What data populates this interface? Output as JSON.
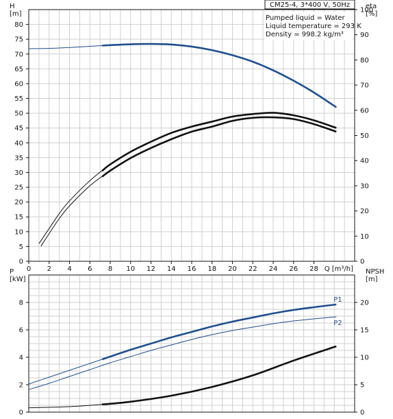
{
  "chart_data": [
    {
      "type": "line",
      "title": "CM25-4, 3*400 V, 50Hz",
      "info": [
        "Pumped liquid = Water",
        "Liquid temperature = 293 K",
        "Density = 998.2 kg/m³"
      ],
      "xlabel": "Q [m³/h]",
      "xlim": [
        0,
        32
      ],
      "xticks": [
        0,
        2,
        4,
        6,
        8,
        10,
        12,
        14,
        16,
        18,
        20,
        22,
        24,
        26,
        28
      ],
      "ylabel_left": [
        "H",
        "[m]"
      ],
      "ylim_left": [
        0,
        85
      ],
      "yticks_left": [
        0,
        5,
        10,
        15,
        20,
        25,
        30,
        35,
        40,
        45,
        50,
        55,
        60,
        65,
        70,
        75,
        80
      ],
      "ylabel_right": [
        "eta",
        "[%]"
      ],
      "ylim_right": [
        0,
        100
      ],
      "yticks_right": [
        0,
        10,
        20,
        30,
        40,
        50,
        60,
        70,
        80,
        90,
        100
      ],
      "grid": true,
      "series": [
        {
          "axis": "left",
          "color": "#1f4e8c",
          "x": [
            0,
            2,
            4,
            6,
            8,
            10,
            12,
            14,
            16,
            18,
            20,
            22,
            24,
            26,
            28,
            30.2
          ],
          "values": [
            71.8,
            71.9,
            72.2,
            72.6,
            73.0,
            73.3,
            73.4,
            73.2,
            72.5,
            71.3,
            69.6,
            67.4,
            64.5,
            61.0,
            57.0,
            52.0
          ],
          "highlight_from": 7.2
        },
        {
          "axis": "right",
          "color": "#111111",
          "x": [
            1.2,
            2,
            3,
            4,
            6,
            8,
            10,
            12,
            14,
            16,
            18,
            20,
            22,
            24,
            26,
            28,
            30.2
          ],
          "values": [
            6,
            11,
            17,
            22,
            30,
            36,
            41,
            45,
            48.5,
            51.5,
            53.5,
            55.8,
            57,
            57.2,
            56.5,
            54.5,
            51.5
          ]
        },
        {
          "axis": "right",
          "color": "#111111",
          "x": [
            1,
            2,
            3,
            4,
            6,
            8,
            10,
            12,
            14,
            16,
            18,
            20,
            22,
            24,
            26,
            28,
            30.2
          ],
          "values": [
            7,
            13,
            19,
            24,
            32,
            38.5,
            43.5,
            47.5,
            51,
            53.5,
            55.5,
            57.5,
            58.5,
            59,
            58,
            56,
            53
          ]
        }
      ]
    },
    {
      "type": "line",
      "xlim": [
        0,
        32
      ],
      "ylabel_left": [
        "P",
        "[kW]"
      ],
      "ylim_left": [
        0,
        10
      ],
      "yticks_left": [
        0,
        2,
        4,
        6,
        8
      ],
      "ylabel_right": [
        "NPSH",
        "[m]"
      ],
      "ylim_right": [
        0,
        25
      ],
      "yticks_right": [
        0,
        5,
        10,
        15,
        20
      ],
      "grid": true,
      "series": [
        {
          "name": "P1",
          "axis": "left",
          "color": "#1f4e8c",
          "x": [
            0,
            2,
            4,
            6,
            8,
            10,
            12,
            14,
            16,
            18,
            20,
            22,
            24,
            26,
            28,
            30.2
          ],
          "values": [
            2.05,
            2.55,
            3.05,
            3.55,
            4.05,
            4.55,
            5.0,
            5.45,
            5.85,
            6.25,
            6.6,
            6.9,
            7.2,
            7.45,
            7.65,
            7.85
          ],
          "highlight_from": 7.2
        },
        {
          "name": "P2",
          "axis": "left",
          "color": "#1f4e8c",
          "x": [
            0,
            2,
            4,
            6,
            8,
            10,
            12,
            14,
            16,
            18,
            20,
            22,
            24,
            26,
            28,
            30.2
          ],
          "values": [
            1.65,
            2.1,
            2.6,
            3.1,
            3.6,
            4.05,
            4.5,
            4.9,
            5.3,
            5.65,
            5.95,
            6.2,
            6.45,
            6.65,
            6.8,
            6.95
          ]
        },
        {
          "axis": "right",
          "color": "#111111",
          "x": [
            0,
            4,
            7.2,
            10,
            14,
            18,
            22,
            26,
            30.2
          ],
          "values": [
            0.8,
            1.0,
            1.4,
            1.9,
            3.0,
            4.6,
            6.7,
            9.4,
            12.0
          ]
        }
      ]
    }
  ]
}
